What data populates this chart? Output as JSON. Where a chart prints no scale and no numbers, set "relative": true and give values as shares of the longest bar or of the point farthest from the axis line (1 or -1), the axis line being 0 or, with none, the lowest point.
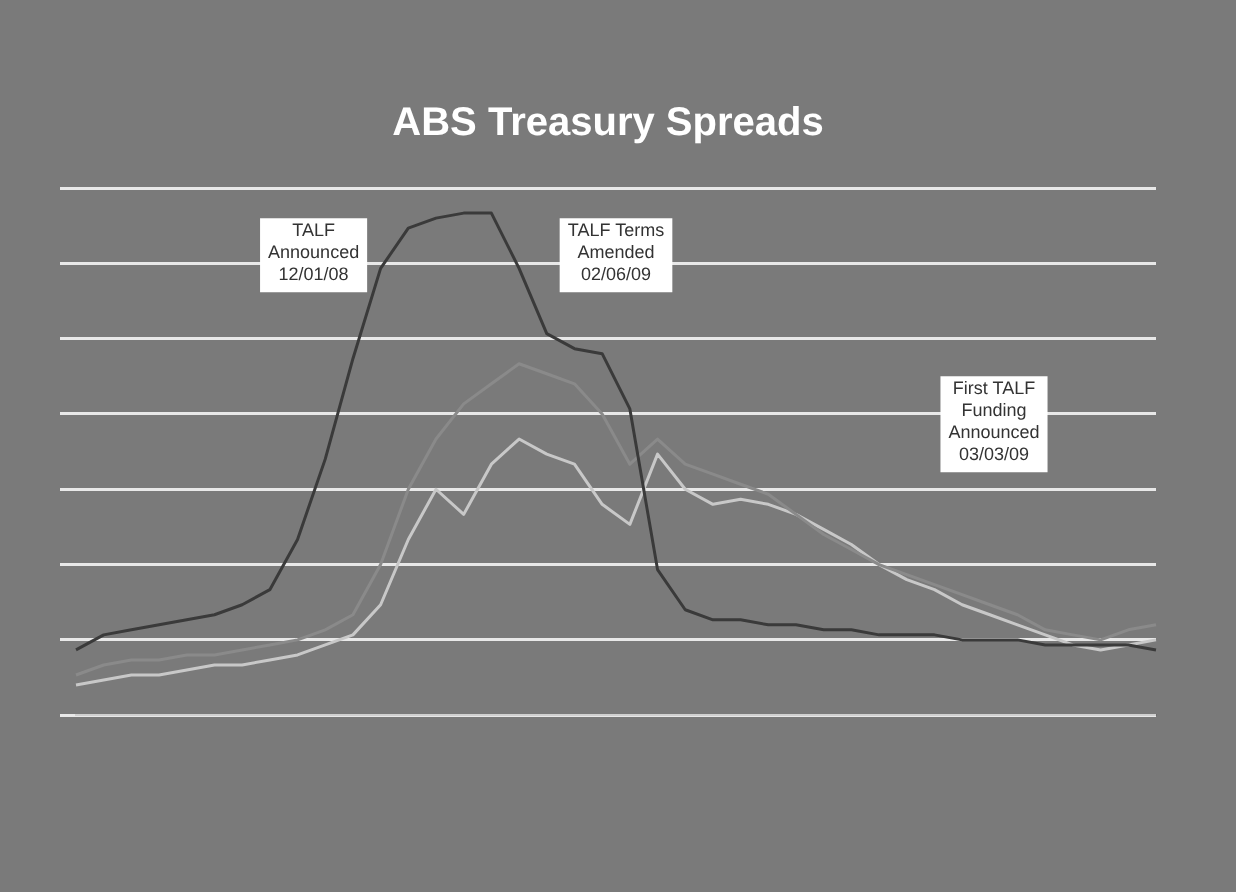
{
  "chart_data": {
    "type": "line",
    "title": "ABS Treasury Spreads",
    "relative": true,
    "grid": "y",
    "marker": "none",
    "categories": [
      null,
      null,
      null,
      null,
      null,
      null,
      null,
      null,
      null,
      null,
      null,
      null,
      null,
      null,
      null,
      null,
      null,
      null,
      null,
      null,
      null,
      null,
      null,
      null,
      null,
      null,
      null,
      null,
      null,
      null,
      null,
      null,
      null,
      null,
      null,
      null,
      null,
      null,
      null,
      null
    ],
    "series": [
      {
        "color": "#3a3a3a",
        "values": [
          0.13,
          0.16,
          0.17,
          0.18,
          0.19,
          0.2,
          0.22,
          0.25,
          0.35,
          0.51,
          0.71,
          0.89,
          0.97,
          0.99,
          1,
          1,
          0.89,
          0.76,
          0.73,
          0.72,
          0.61,
          0.29,
          0.21,
          0.19,
          0.19,
          0.18,
          0.18,
          0.17,
          0.17,
          0.16,
          0.16,
          0.16,
          0.15,
          0.15,
          0.15,
          0.14,
          0.14,
          0.14,
          0.14,
          0.13
        ]
      },
      {
        "color": "#8a8a8a",
        "values": [
          0.08,
          0.1,
          0.11,
          0.11,
          0.12,
          0.12,
          0.13,
          0.14,
          0.15,
          0.17,
          0.2,
          0.3,
          0.45,
          0.55,
          0.62,
          0.66,
          0.7,
          0.68,
          0.66,
          0.6,
          0.5,
          0.55,
          0.5,
          0.48,
          0.46,
          0.44,
          0.4,
          0.36,
          0.33,
          0.3,
          0.28,
          0.26,
          0.24,
          0.22,
          0.2,
          0.17,
          0.16,
          0.15,
          0.17,
          0.18
        ]
      },
      {
        "color": "#c8c8c8",
        "values": [
          0.06,
          0.07,
          0.08,
          0.08,
          0.09,
          0.1,
          0.1,
          0.11,
          0.12,
          0.14,
          0.16,
          0.22,
          0.35,
          0.45,
          0.4,
          0.5,
          0.55,
          0.52,
          0.5,
          0.42,
          0.38,
          0.52,
          0.45,
          0.42,
          0.43,
          0.42,
          0.4,
          0.37,
          0.34,
          0.3,
          0.27,
          0.25,
          0.22,
          0.2,
          0.18,
          0.16,
          0.14,
          0.13,
          0.14,
          0.15
        ]
      }
    ],
    "annotations": [
      "TALF Announced 12/01/08",
      "TALF Terms Amended 02/06/09",
      "First TALF Funding Announced 03/03/09"
    ]
  }
}
